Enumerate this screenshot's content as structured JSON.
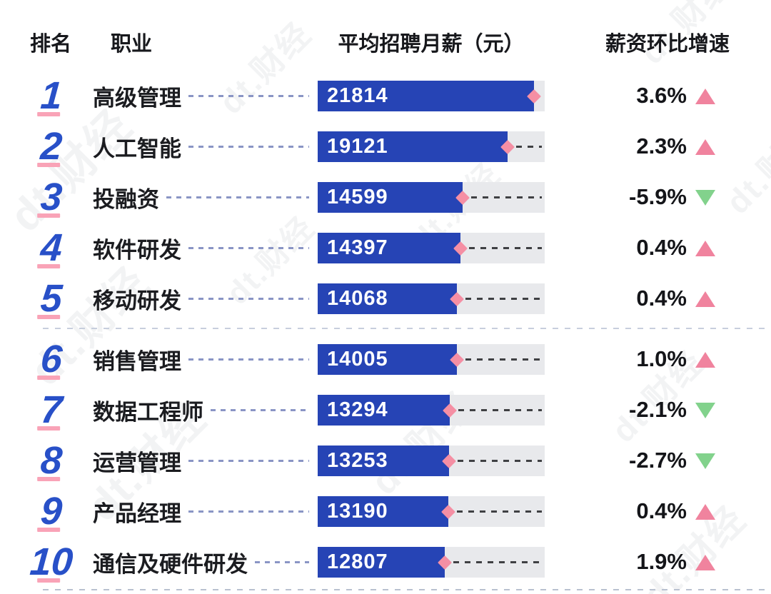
{
  "watermark": "dt.财经",
  "header": {
    "rank": "排名",
    "occupation": "职业",
    "salary": "平均招聘月薪（元）",
    "growth": "薪资环比增速"
  },
  "colors": {
    "bar_blue": "#2644b5",
    "rank_blue": "#2850c8",
    "track_gray": "#e8e9ec",
    "diamond_pink": "#f58fa4",
    "underline_pink": "#f9a3b7",
    "up_pink": "#f0839e",
    "down_green": "#82d28c",
    "text_black": "#1b1c20"
  },
  "chart_data": {
    "type": "bar",
    "orientation": "horizontal",
    "title": "",
    "columns": [
      "排名",
      "职业",
      "平均招聘月薪（元）",
      "薪资环比增速"
    ],
    "value_unit": "元",
    "xlim": [
      0,
      22900
    ],
    "legend": "none",
    "rows": [
      {
        "rank": "1",
        "occupation": "高级管理",
        "salary": 21814,
        "growth": "3.6%",
        "direction": "up"
      },
      {
        "rank": "2",
        "occupation": "人工智能",
        "salary": 19121,
        "growth": "2.3%",
        "direction": "up"
      },
      {
        "rank": "3",
        "occupation": "投融资",
        "salary": 14599,
        "growth": "-5.9%",
        "direction": "down"
      },
      {
        "rank": "4",
        "occupation": "软件研发",
        "salary": 14397,
        "growth": "0.4%",
        "direction": "up"
      },
      {
        "rank": "5",
        "occupation": "移动研发",
        "salary": 14068,
        "growth": "0.4%",
        "direction": "up"
      },
      {
        "rank": "6",
        "occupation": "销售管理",
        "salary": 14005,
        "growth": "1.0%",
        "direction": "up"
      },
      {
        "rank": "7",
        "occupation": "数据工程师",
        "salary": 13294,
        "growth": "-2.1%",
        "direction": "down"
      },
      {
        "rank": "8",
        "occupation": "运营管理",
        "salary": 13253,
        "growth": "-2.7%",
        "direction": "down"
      },
      {
        "rank": "9",
        "occupation": "产品经理",
        "salary": 13190,
        "growth": "0.4%",
        "direction": "up"
      },
      {
        "rank": "10",
        "occupation": "通信及硬件研发",
        "salary": 12807,
        "growth": "1.9%",
        "direction": "up"
      }
    ]
  }
}
